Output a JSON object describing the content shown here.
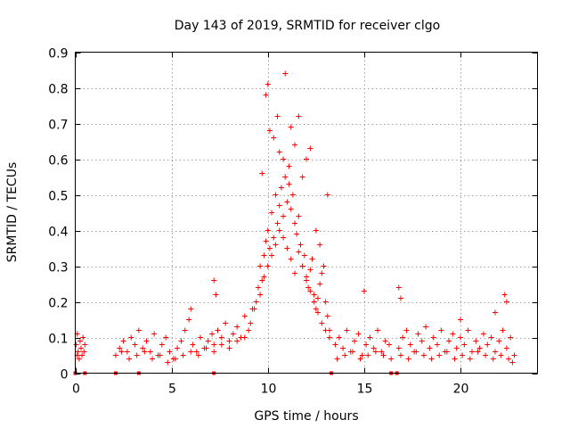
{
  "chart_data": {
    "type": "scatter",
    "title": "Day 143 of 2019, SRMTID for receiver clgo",
    "xlabel": "GPS time / hours",
    "ylabel": "SRMTID / TECUs",
    "xlim": [
      0,
      24
    ],
    "ylim": [
      0,
      0.9
    ],
    "xticks": [
      0,
      5,
      10,
      15,
      20
    ],
    "xtick_labels": [
      "0",
      "5",
      "10",
      "15",
      "20"
    ],
    "yticks": [
      0,
      0.1,
      0.2,
      0.3,
      0.4,
      0.5,
      0.6,
      0.7,
      0.8,
      0.9
    ],
    "ytick_labels": [
      "0",
      "0.1",
      "0.2",
      "0.3",
      "0.4",
      "0.5",
      "0.6",
      "0.7",
      "0.8",
      "0.9"
    ],
    "grid": true,
    "marker": "+",
    "color": "#ff0000",
    "series": [
      {
        "name": "SRMTID",
        "x": [
          0.05,
          0.1,
          0.15,
          0.2,
          0.25,
          0.3,
          0.35,
          0.4,
          0.45,
          0.5,
          2.1,
          2.3,
          2.5,
          2.7,
          2.9,
          3.1,
          3.3,
          3.5,
          3.7,
          3.9,
          4.1,
          4.3,
          4.5,
          4.7,
          4.9,
          5.1,
          5.3,
          5.5,
          5.7,
          5.9,
          6.1,
          6.3,
          6.5,
          6.7,
          6.9,
          7.1,
          7.2,
          7.4,
          7.6,
          7.8,
          8.0,
          8.2,
          8.4,
          8.6,
          8.8,
          9.0,
          9.2,
          9.4,
          9.5,
          9.6,
          9.7,
          9.8,
          9.9,
          10.0,
          10.1,
          10.2,
          10.3,
          10.4,
          10.5,
          10.6,
          10.7,
          10.8,
          10.9,
          11.0,
          11.1,
          11.2,
          11.3,
          11.4,
          11.5,
          11.6,
          11.7,
          11.8,
          11.9,
          12.0,
          12.1,
          12.2,
          12.3,
          12.4,
          12.5,
          12.6,
          12.7,
          12.8,
          12.9,
          13.0,
          13.1,
          13.2,
          13.5,
          13.7,
          13.9,
          14.1,
          14.3,
          14.5,
          14.7,
          14.9,
          15.1,
          15.3,
          15.5,
          15.7,
          15.9,
          16.1,
          16.3,
          16.8,
          17.0,
          17.2,
          17.4,
          17.6,
          17.8,
          18.0,
          18.2,
          18.4,
          18.6,
          18.8,
          19.0,
          19.2,
          19.4,
          19.6,
          19.8,
          20.0,
          20.2,
          20.4,
          20.6,
          20.8,
          21.0,
          21.2,
          21.4,
          21.6,
          21.8,
          22.0,
          22.2,
          22.4,
          22.6,
          22.8,
          0.1,
          0.3,
          2.4,
          2.8,
          3.2,
          3.6,
          4.0,
          4.4,
          4.8,
          5.2,
          5.6,
          6.0,
          6.4,
          6.8,
          7.2,
          7.6,
          8.0,
          8.4,
          8.8,
          9.1,
          9.3,
          9.6,
          9.8,
          10.0,
          10.2,
          10.4,
          10.6,
          10.8,
          11.0,
          11.2,
          11.4,
          11.6,
          11.8,
          12.0,
          12.2,
          12.4,
          12.6,
          12.8,
          13.0,
          13.2,
          13.6,
          14.0,
          14.4,
          14.8,
          15.2,
          15.6,
          16.0,
          16.4,
          16.9,
          17.3,
          17.7,
          18.1,
          18.5,
          18.9,
          19.3,
          19.7,
          20.1,
          20.5,
          20.9,
          21.3,
          21.7,
          22.1,
          22.5,
          22.7,
          9.7,
          9.9,
          10.0,
          10.1,
          10.3,
          10.5,
          10.6,
          10.8,
          10.9,
          11.1,
          11.2,
          11.4,
          11.6,
          11.8,
          12.0,
          12.5,
          12.7,
          13.1,
          6.0,
          7.2,
          7.3,
          15.0,
          16.8,
          16.9,
          20.0,
          21.8,
          22.3,
          22.4,
          12.2
        ],
        "y": [
          0.08,
          0.11,
          0.06,
          0.04,
          0.09,
          0.07,
          0.05,
          0.1,
          0.06,
          0.08,
          0.05,
          0.07,
          0.09,
          0.06,
          0.1,
          0.08,
          0.12,
          0.07,
          0.09,
          0.06,
          0.11,
          0.05,
          0.08,
          0.1,
          0.06,
          0.04,
          0.07,
          0.09,
          0.12,
          0.15,
          0.08,
          0.06,
          0.1,
          0.07,
          0.09,
          0.11,
          0.08,
          0.12,
          0.1,
          0.14,
          0.09,
          0.11,
          0.13,
          0.1,
          0.16,
          0.12,
          0.18,
          0.2,
          0.24,
          0.3,
          0.26,
          0.33,
          0.37,
          0.4,
          0.35,
          0.45,
          0.38,
          0.5,
          0.42,
          0.47,
          0.52,
          0.44,
          0.55,
          0.48,
          0.53,
          0.46,
          0.5,
          0.42,
          0.39,
          0.44,
          0.36,
          0.3,
          0.33,
          0.27,
          0.24,
          0.29,
          0.32,
          0.22,
          0.18,
          0.21,
          0.25,
          0.28,
          0.3,
          0.2,
          0.16,
          0.12,
          0.08,
          0.1,
          0.07,
          0.12,
          0.06,
          0.09,
          0.11,
          0.05,
          0.08,
          0.1,
          0.07,
          0.12,
          0.06,
          0.09,
          0.08,
          0.07,
          0.1,
          0.12,
          0.08,
          0.06,
          0.11,
          0.09,
          0.13,
          0.07,
          0.1,
          0.08,
          0.12,
          0.06,
          0.09,
          0.11,
          0.07,
          0.1,
          0.08,
          0.12,
          0.06,
          0.09,
          0.07,
          0.11,
          0.08,
          0.1,
          0.06,
          0.09,
          0.12,
          0.07,
          0.1,
          0.05,
          0.05,
          0.07,
          0.06,
          0.04,
          0.05,
          0.06,
          0.04,
          0.05,
          0.03,
          0.04,
          0.05,
          0.06,
          0.05,
          0.07,
          0.06,
          0.08,
          0.07,
          0.09,
          0.1,
          0.14,
          0.18,
          0.22,
          0.27,
          0.3,
          0.33,
          0.36,
          0.4,
          0.38,
          0.35,
          0.32,
          0.28,
          0.34,
          0.3,
          0.26,
          0.23,
          0.2,
          0.17,
          0.14,
          0.12,
          0.1,
          0.04,
          0.05,
          0.06,
          0.04,
          0.05,
          0.06,
          0.05,
          0.04,
          0.05,
          0.04,
          0.06,
          0.05,
          0.04,
          0.05,
          0.06,
          0.04,
          0.05,
          0.04,
          0.06,
          0.05,
          0.04,
          0.05,
          0.04,
          0.03,
          0.56,
          0.78,
          0.81,
          0.68,
          0.66,
          0.72,
          0.62,
          0.6,
          0.84,
          0.58,
          0.69,
          0.64,
          0.72,
          0.55,
          0.6,
          0.4,
          0.36,
          0.5,
          0.18,
          0.26,
          0.22,
          0.23,
          0.24,
          0.21,
          0.15,
          0.17,
          0.22,
          0.2,
          0.63
        ],
        "markers_on_axis_x": [
          0.0,
          0.5,
          2.1,
          3.3,
          7.2,
          13.3,
          16.4,
          16.7
        ]
      }
    ]
  }
}
